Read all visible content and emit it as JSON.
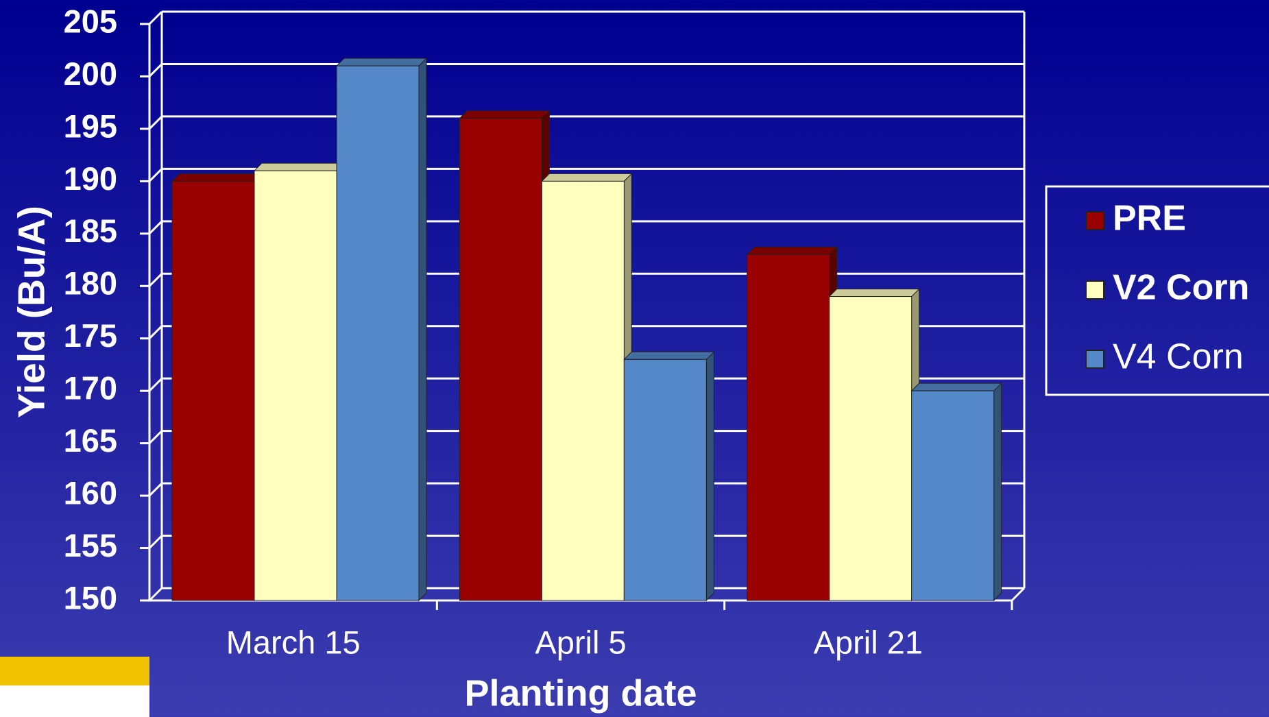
{
  "chart_data": {
    "type": "bar3d",
    "y_label": "Yield (Bu/A)",
    "x_label": "Planting date",
    "categories": [
      "March 15",
      "April 5",
      "April 21"
    ],
    "series": [
      {
        "name": "PRE",
        "color": "#990000",
        "values": [
          190,
          196,
          183
        ]
      },
      {
        "name": "V2 Corn",
        "color": "#ffffc0",
        "values": [
          191,
          190,
          179
        ]
      },
      {
        "name": "V4 Corn",
        "color": "#5588c8",
        "values": [
          201,
          173,
          170
        ]
      }
    ],
    "ylim": [
      150,
      205
    ],
    "yticks": [
      150,
      155,
      160,
      165,
      170,
      175,
      180,
      185,
      190,
      195,
      200,
      205
    ],
    "grid": true,
    "legend": "right"
  }
}
